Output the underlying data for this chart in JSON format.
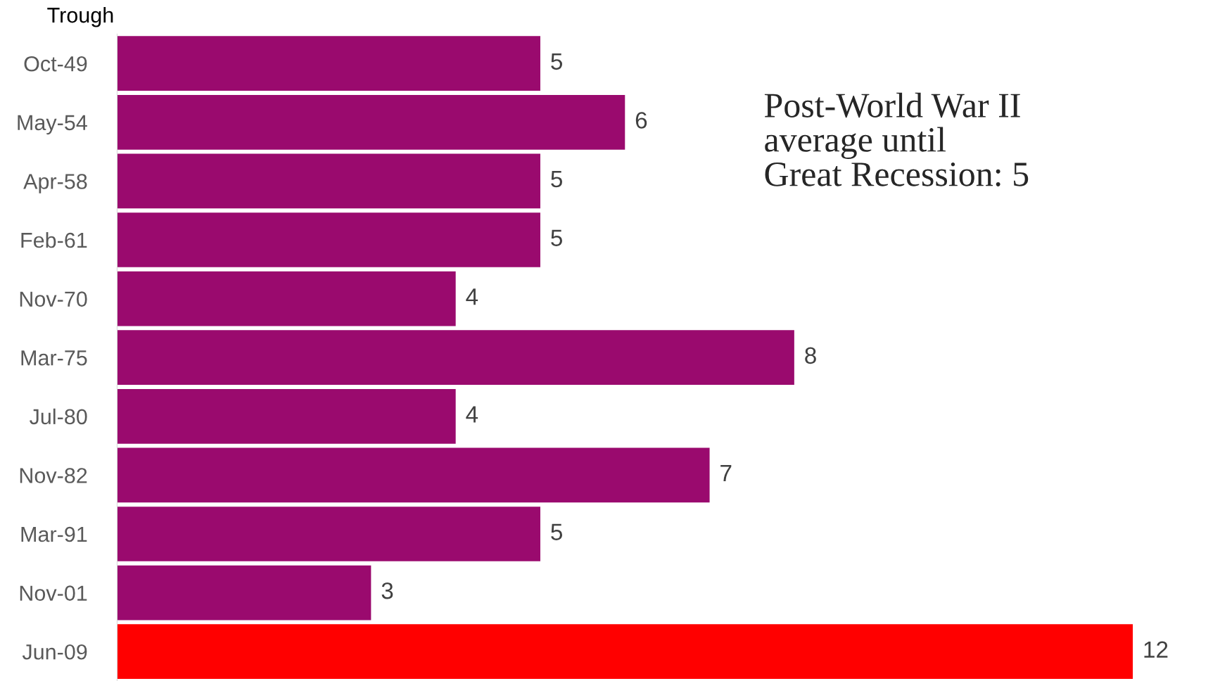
{
  "chart_data": {
    "type": "bar",
    "orientation": "horizontal",
    "ylabel": "Trough",
    "categories": [
      "Oct-49",
      "May-54",
      "Apr-58",
      "Feb-61",
      "Nov-70",
      "Mar-75",
      "Jul-80",
      "Nov-82",
      "Mar-91",
      "Nov-01",
      "Jun-09"
    ],
    "values": [
      5,
      6,
      5,
      5,
      4,
      8,
      4,
      7,
      5,
      3,
      12
    ],
    "colors": [
      "#9a0a6e",
      "#9a0a6e",
      "#9a0a6e",
      "#9a0a6e",
      "#9a0a6e",
      "#9a0a6e",
      "#9a0a6e",
      "#9a0a6e",
      "#9a0a6e",
      "#9a0a6e",
      "#ff0000"
    ],
    "data_labels": true,
    "grid": false,
    "legend": false,
    "annotations": [
      "Post-World War II\naverage until\nGreat Recession: 5"
    ]
  }
}
